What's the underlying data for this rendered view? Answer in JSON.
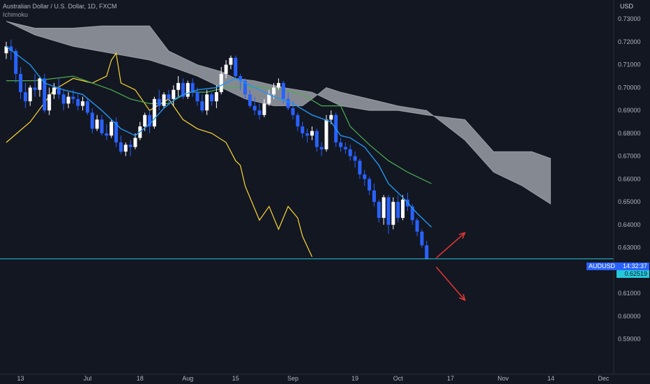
{
  "header": {
    "symbol_line": "Australian Dollar / U.S. Dollar, 1D, FXCM",
    "indicator_label": "Ichimoku"
  },
  "axis": {
    "currency": "USD"
  },
  "price_tag": {
    "symbol": "AUDUSD",
    "countdown": "14:32:37",
    "price": "0.62519"
  },
  "colors": {
    "background": "#131722",
    "bull": "#ffffff",
    "bear": "#2962ff",
    "conversion_line": "#2196f3",
    "base_line": "#4caf50",
    "lagging_span": "#fdd835",
    "cloud": "#b2b5be",
    "horizontal_line": "#26c6da",
    "arrow": "#e53935"
  },
  "chart_data": {
    "type": "candlestick",
    "x_tick_labels": [
      "13",
      "Jul",
      "18",
      "Aug",
      "15",
      "Sep",
      "19",
      "Oct",
      "17",
      "Nov",
      "14",
      "Dec"
    ],
    "y_tick_labels": [
      "0.73000",
      "0.72000",
      "0.71000",
      "0.70000",
      "0.69000",
      "0.68000",
      "0.67000",
      "0.66000",
      "0.65000",
      "0.64000",
      "0.63000",
      "0.62000",
      "0.61000",
      "0.60000",
      "0.59000"
    ],
    "ylim": [
      0.583,
      0.7325
    ],
    "grid": false,
    "horizontal_line": 0.6251,
    "last_price": 0.62519,
    "candles": [
      [
        0.715,
        0.72,
        0.7125,
        0.718
      ],
      [
        0.718,
        0.721,
        0.712,
        0.716
      ],
      [
        0.716,
        0.717,
        0.702,
        0.706
      ],
      [
        0.706,
        0.709,
        0.695,
        0.698
      ],
      [
        0.698,
        0.702,
        0.691,
        0.694
      ],
      [
        0.694,
        0.701,
        0.692,
        0.7
      ],
      [
        0.7,
        0.706,
        0.696,
        0.699
      ],
      [
        0.699,
        0.705,
        0.696,
        0.704
      ],
      [
        0.704,
        0.706,
        0.689,
        0.69
      ],
      [
        0.69,
        0.7,
        0.688,
        0.697
      ],
      [
        0.697,
        0.702,
        0.695,
        0.7
      ],
      [
        0.7,
        0.704,
        0.695,
        0.697
      ],
      [
        0.697,
        0.699,
        0.69,
        0.693
      ],
      [
        0.693,
        0.698,
        0.691,
        0.696
      ],
      [
        0.696,
        0.699,
        0.693,
        0.695
      ],
      [
        0.695,
        0.697,
        0.69,
        0.692
      ],
      [
        0.692,
        0.696,
        0.69,
        0.694
      ],
      [
        0.694,
        0.695,
        0.688,
        0.689
      ],
      [
        0.689,
        0.691,
        0.68,
        0.682
      ],
      [
        0.682,
        0.688,
        0.681,
        0.686
      ],
      [
        0.686,
        0.688,
        0.679,
        0.68
      ],
      [
        0.68,
        0.684,
        0.677,
        0.679
      ],
      [
        0.679,
        0.686,
        0.678,
        0.685
      ],
      [
        0.685,
        0.687,
        0.674,
        0.676
      ],
      [
        0.676,
        0.679,
        0.671,
        0.672
      ],
      [
        0.672,
        0.676,
        0.67,
        0.675
      ],
      [
        0.675,
        0.677,
        0.67,
        0.674
      ],
      [
        0.674,
        0.68,
        0.673,
        0.678
      ],
      [
        0.678,
        0.685,
        0.677,
        0.683
      ],
      [
        0.683,
        0.689,
        0.681,
        0.688
      ],
      [
        0.688,
        0.69,
        0.68,
        0.683
      ],
      [
        0.683,
        0.696,
        0.682,
        0.695
      ],
      [
        0.695,
        0.699,
        0.69,
        0.692
      ],
      [
        0.692,
        0.698,
        0.691,
        0.697
      ],
      [
        0.697,
        0.699,
        0.693,
        0.695
      ],
      [
        0.695,
        0.701,
        0.692,
        0.699
      ],
      [
        0.699,
        0.705,
        0.696,
        0.702
      ],
      [
        0.702,
        0.704,
        0.695,
        0.696
      ],
      [
        0.696,
        0.703,
        0.695,
        0.702
      ],
      [
        0.702,
        0.704,
        0.696,
        0.698
      ],
      [
        0.698,
        0.7,
        0.692,
        0.694
      ],
      [
        0.694,
        0.697,
        0.689,
        0.69
      ],
      [
        0.69,
        0.699,
        0.688,
        0.697
      ],
      [
        0.697,
        0.698,
        0.692,
        0.694
      ],
      [
        0.694,
        0.701,
        0.691,
        0.698
      ],
      [
        0.698,
        0.709,
        0.697,
        0.706
      ],
      [
        0.706,
        0.712,
        0.704,
        0.71
      ],
      [
        0.71,
        0.714,
        0.708,
        0.713
      ],
      [
        0.713,
        0.714,
        0.704,
        0.705
      ],
      [
        0.705,
        0.706,
        0.699,
        0.703
      ],
      [
        0.703,
        0.704,
        0.695,
        0.697
      ],
      [
        0.697,
        0.699,
        0.691,
        0.692
      ],
      [
        0.692,
        0.696,
        0.688,
        0.69
      ],
      [
        0.69,
        0.693,
        0.686,
        0.688
      ],
      [
        0.688,
        0.695,
        0.687,
        0.693
      ],
      [
        0.693,
        0.699,
        0.692,
        0.697
      ],
      [
        0.697,
        0.702,
        0.695,
        0.7
      ],
      [
        0.7,
        0.704,
        0.699,
        0.702
      ],
      [
        0.702,
        0.703,
        0.693,
        0.695
      ],
      [
        0.695,
        0.698,
        0.69,
        0.691
      ],
      [
        0.691,
        0.694,
        0.686,
        0.688
      ],
      [
        0.688,
        0.689,
        0.681,
        0.683
      ],
      [
        0.683,
        0.685,
        0.678,
        0.68
      ],
      [
        0.68,
        0.682,
        0.676,
        0.679
      ],
      [
        0.679,
        0.683,
        0.677,
        0.681
      ],
      [
        0.681,
        0.682,
        0.672,
        0.674
      ],
      [
        0.674,
        0.676,
        0.67,
        0.673
      ],
      [
        0.673,
        0.688,
        0.672,
        0.686
      ],
      [
        0.686,
        0.69,
        0.684,
        0.688
      ],
      [
        0.688,
        0.689,
        0.674,
        0.676
      ],
      [
        0.676,
        0.678,
        0.672,
        0.674
      ],
      [
        0.674,
        0.676,
        0.671,
        0.673
      ],
      [
        0.673,
        0.675,
        0.668,
        0.67
      ],
      [
        0.67,
        0.672,
        0.665,
        0.668
      ],
      [
        0.668,
        0.669,
        0.66,
        0.662
      ],
      [
        0.662,
        0.664,
        0.657,
        0.66
      ],
      [
        0.66,
        0.661,
        0.653,
        0.655
      ],
      [
        0.655,
        0.658,
        0.648,
        0.65
      ],
      [
        0.65,
        0.651,
        0.641,
        0.643
      ],
      [
        0.643,
        0.653,
        0.64,
        0.652
      ],
      [
        0.652,
        0.653,
        0.636,
        0.64
      ],
      [
        0.64,
        0.652,
        0.638,
        0.65
      ],
      [
        0.65,
        0.653,
        0.641,
        0.643
      ],
      [
        0.643,
        0.653,
        0.642,
        0.651
      ],
      [
        0.651,
        0.654,
        0.646,
        0.648
      ],
      [
        0.648,
        0.649,
        0.64,
        0.642
      ],
      [
        0.642,
        0.643,
        0.635,
        0.637
      ],
      [
        0.637,
        0.638,
        0.63,
        0.631
      ],
      [
        0.631,
        0.633,
        0.625,
        0.6252
      ]
    ],
    "conversion_line": [
      [
        0,
        0.718
      ],
      [
        5,
        0.71
      ],
      [
        8,
        0.702
      ],
      [
        12,
        0.699
      ],
      [
        16,
        0.697
      ],
      [
        20,
        0.69
      ],
      [
        24,
        0.682
      ],
      [
        27,
        0.679
      ],
      [
        30,
        0.684
      ],
      [
        33,
        0.691
      ],
      [
        36,
        0.696
      ],
      [
        40,
        0.699
      ],
      [
        44,
        0.7
      ],
      [
        48,
        0.704
      ],
      [
        52,
        0.7
      ],
      [
        56,
        0.696
      ],
      [
        60,
        0.693
      ],
      [
        64,
        0.688
      ],
      [
        68,
        0.685
      ],
      [
        70,
        0.679
      ],
      [
        72,
        0.678
      ],
      [
        75,
        0.674
      ],
      [
        78,
        0.666
      ],
      [
        80,
        0.658
      ],
      [
        83,
        0.652
      ],
      [
        86,
        0.645
      ],
      [
        89,
        0.639
      ]
    ],
    "base_line": [
      [
        0,
        0.703
      ],
      [
        6,
        0.703
      ],
      [
        14,
        0.705
      ],
      [
        22,
        0.699
      ],
      [
        26,
        0.695
      ],
      [
        30,
        0.693
      ],
      [
        34,
        0.693
      ],
      [
        38,
        0.698
      ],
      [
        42,
        0.698
      ],
      [
        46,
        0.7
      ],
      [
        50,
        0.7
      ],
      [
        54,
        0.7
      ],
      [
        58,
        0.699
      ],
      [
        62,
        0.697
      ],
      [
        66,
        0.692
      ],
      [
        70,
        0.692
      ],
      [
        72,
        0.683
      ],
      [
        76,
        0.675
      ],
      [
        80,
        0.668
      ],
      [
        84,
        0.663
      ],
      [
        87,
        0.66
      ],
      [
        89,
        0.658
      ]
    ],
    "lagging_span": [
      [
        0,
        0.676
      ],
      [
        5,
        0.685
      ],
      [
        10,
        0.699
      ],
      [
        14,
        0.704
      ],
      [
        18,
        0.702
      ],
      [
        21,
        0.705
      ],
      [
        22,
        0.712
      ],
      [
        23,
        0.715
      ],
      [
        24,
        0.702
      ],
      [
        27,
        0.699
      ],
      [
        30,
        0.69
      ],
      [
        34,
        0.695
      ],
      [
        37,
        0.686
      ],
      [
        40,
        0.682
      ],
      [
        43,
        0.68
      ],
      [
        46,
        0.676
      ],
      [
        48,
        0.668
      ],
      [
        49,
        0.666
      ],
      [
        50,
        0.657
      ],
      [
        53,
        0.642
      ],
      [
        55,
        0.648
      ],
      [
        57,
        0.638
      ],
      [
        59,
        0.648
      ],
      [
        61,
        0.643
      ],
      [
        62,
        0.635
      ],
      [
        64,
        0.626
      ]
    ],
    "cloud_span_a": [
      [
        0,
        0.729
      ],
      [
        6,
        0.726
      ],
      [
        14,
        0.726
      ],
      [
        20,
        0.727
      ],
      [
        30,
        0.727
      ],
      [
        34,
        0.716
      ],
      [
        40,
        0.71
      ],
      [
        45,
        0.707
      ],
      [
        48,
        0.704
      ],
      [
        52,
        0.703
      ],
      [
        58,
        0.7
      ],
      [
        64,
        0.698
      ],
      [
        70,
        0.692
      ],
      [
        76,
        0.69
      ],
      [
        82,
        0.69
      ],
      [
        88,
        0.688
      ],
      [
        96,
        0.686
      ],
      [
        102,
        0.672
      ],
      [
        110,
        0.672
      ],
      [
        114,
        0.669
      ]
    ],
    "cloud_span_b": [
      [
        0,
        0.729
      ],
      [
        6,
        0.723
      ],
      [
        14,
        0.718
      ],
      [
        22,
        0.715
      ],
      [
        30,
        0.712
      ],
      [
        36,
        0.708
      ],
      [
        40,
        0.705
      ],
      [
        46,
        0.699
      ],
      [
        50,
        0.695
      ],
      [
        56,
        0.692
      ],
      [
        62,
        0.692
      ],
      [
        64,
        0.695
      ],
      [
        67,
        0.7
      ],
      [
        70,
        0.698
      ],
      [
        76,
        0.695
      ],
      [
        82,
        0.692
      ],
      [
        88,
        0.69
      ],
      [
        96,
        0.677
      ],
      [
        102,
        0.663
      ],
      [
        108,
        0.657
      ],
      [
        114,
        0.649
      ]
    ],
    "arrows": [
      {
        "direction": "up",
        "from": [
          90,
          0.6255
        ],
        "to": [
          96,
          0.6365
        ]
      },
      {
        "direction": "down",
        "from": [
          90,
          0.6215
        ],
        "to": [
          96,
          0.607
        ]
      }
    ]
  }
}
